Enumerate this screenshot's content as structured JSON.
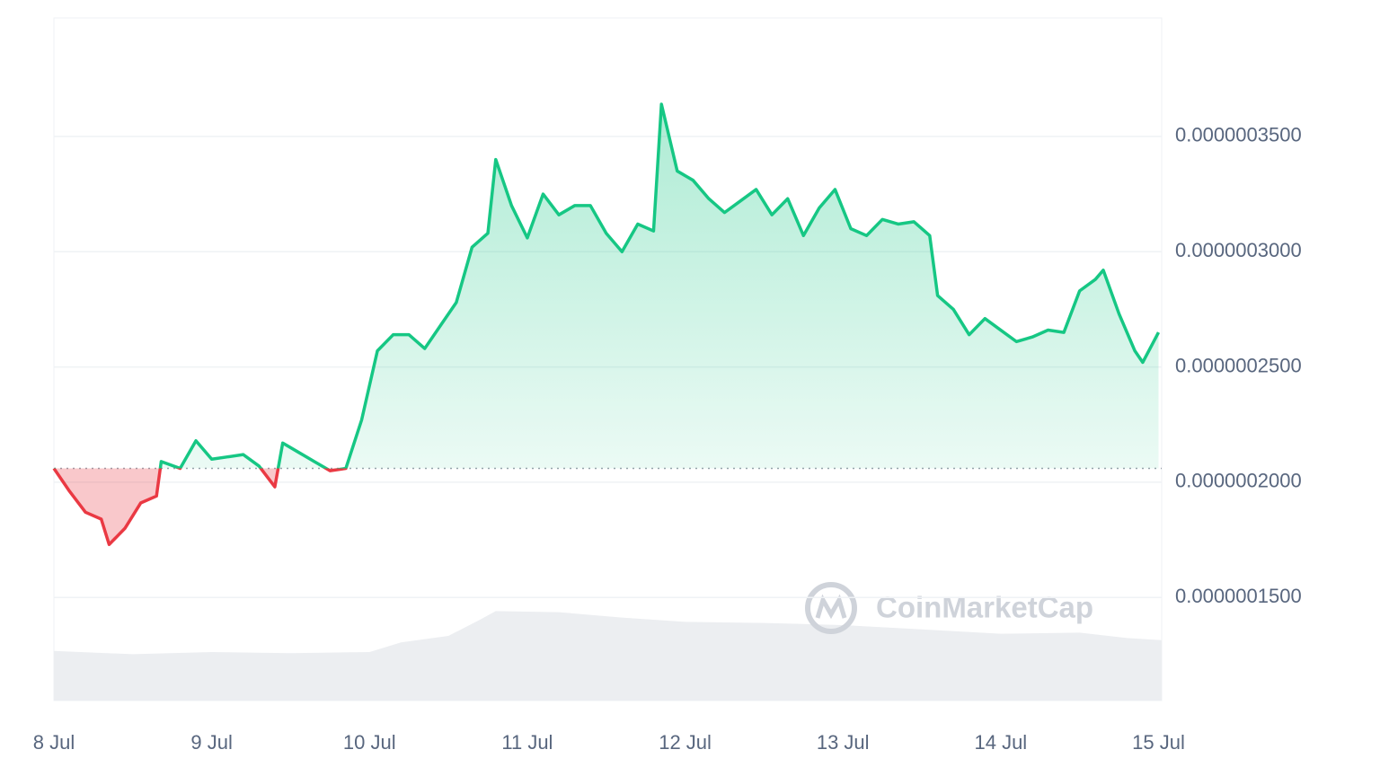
{
  "chart_data": {
    "type": "line",
    "x": [
      0,
      0.1,
      0.2,
      0.3,
      0.35,
      0.45,
      0.55,
      0.65,
      0.68,
      0.8,
      0.9,
      1.0,
      1.1,
      1.2,
      1.3,
      1.4,
      1.45,
      1.55,
      1.65,
      1.75,
      1.85,
      1.95,
      2.05,
      2.15,
      2.25,
      2.35,
      2.45,
      2.55,
      2.65,
      2.75,
      2.8,
      2.9,
      3.0,
      3.1,
      3.2,
      3.3,
      3.4,
      3.5,
      3.6,
      3.7,
      3.8,
      3.85,
      3.95,
      4.05,
      4.15,
      4.25,
      4.35,
      4.45,
      4.55,
      4.65,
      4.75,
      4.85,
      4.95,
      5.05,
      5.15,
      5.25,
      5.35,
      5.45,
      5.55,
      5.6,
      5.7,
      5.8,
      5.9,
      6.0,
      6.1,
      6.2,
      6.3,
      6.4,
      6.5,
      6.6,
      6.65,
      6.75,
      6.85,
      6.9,
      7.0
    ],
    "series": [
      {
        "color": "#16c784",
        "color_below": "#ea3943",
        "values": [
          2.06e-07,
          1.96e-07,
          1.87e-07,
          1.84e-07,
          1.73e-07,
          1.8e-07,
          1.91e-07,
          1.94e-07,
          2.09e-07,
          2.06e-07,
          2.18e-07,
          2.1e-07,
          2.11e-07,
          2.12e-07,
          2.07e-07,
          1.98e-07,
          2.17e-07,
          2.13e-07,
          2.09e-07,
          2.05e-07,
          2.06e-07,
          2.27e-07,
          2.57e-07,
          2.64e-07,
          2.64e-07,
          2.58e-07,
          2.68e-07,
          2.78e-07,
          3.02e-07,
          3.08e-07,
          3.4e-07,
          3.2e-07,
          3.06e-07,
          3.25e-07,
          3.16e-07,
          3.2e-07,
          3.2e-07,
          3.08e-07,
          3e-07,
          3.12e-07,
          3.09e-07,
          3.64e-07,
          3.35e-07,
          3.31e-07,
          3.23e-07,
          3.17e-07,
          3.22e-07,
          3.27e-07,
          3.16e-07,
          3.23e-07,
          3.07e-07,
          3.19e-07,
          3.27e-07,
          3.1e-07,
          3.07e-07,
          3.14e-07,
          3.12e-07,
          3.13e-07,
          3.07e-07,
          2.81e-07,
          2.75e-07,
          2.64e-07,
          2.71e-07,
          2.66e-07,
          2.61e-07,
          2.63e-07,
          2.66e-07,
          2.65e-07,
          2.83e-07,
          2.88e-07,
          2.92e-07,
          2.73e-07,
          2.57e-07,
          2.52e-07,
          2.65e-07
        ]
      }
    ],
    "baseline": 2.06e-07,
    "xlim": [
      0,
      7.02
    ],
    "xticks": [
      {
        "value": 0,
        "label": "8 Jul"
      },
      {
        "value": 1,
        "label": "9 Jul"
      },
      {
        "value": 2,
        "label": "10 Jul"
      },
      {
        "value": 3,
        "label": "11 Jul"
      },
      {
        "value": 4,
        "label": "12 Jul"
      },
      {
        "value": 5,
        "label": "13 Jul"
      },
      {
        "value": 6,
        "label": "14 Jul"
      },
      {
        "value": 7,
        "label": "15 Jul"
      }
    ],
    "ylim": [
      1.053e-07,
      4.014e-07
    ],
    "yticks": [
      {
        "value": 1.5e-07,
        "label": "0.0000001500"
      },
      {
        "value": 2e-07,
        "label": "0.0000002000"
      },
      {
        "value": 2.5e-07,
        "label": "0.0000002500"
      },
      {
        "value": 3e-07,
        "label": "0.0000003000"
      },
      {
        "value": 3.5e-07,
        "label": "0.0000003500"
      }
    ],
    "grid": true,
    "watermark": "CoinMarketCap",
    "volume": {
      "color": "#eceef1",
      "ylim": [
        0,
        100
      ],
      "x": [
        0,
        0.5,
        1,
        1.5,
        2,
        2.2,
        2.5,
        2.7,
        2.8,
        3.2,
        3.6,
        4.0,
        4.5,
        5.0,
        5.5,
        6.0,
        6.5,
        6.8,
        7.02
      ],
      "values": [
        46,
        43,
        45,
        44,
        45,
        54,
        60,
        75,
        83,
        82,
        77,
        73,
        72,
        70,
        66,
        62,
        63,
        58,
        56
      ]
    }
  }
}
